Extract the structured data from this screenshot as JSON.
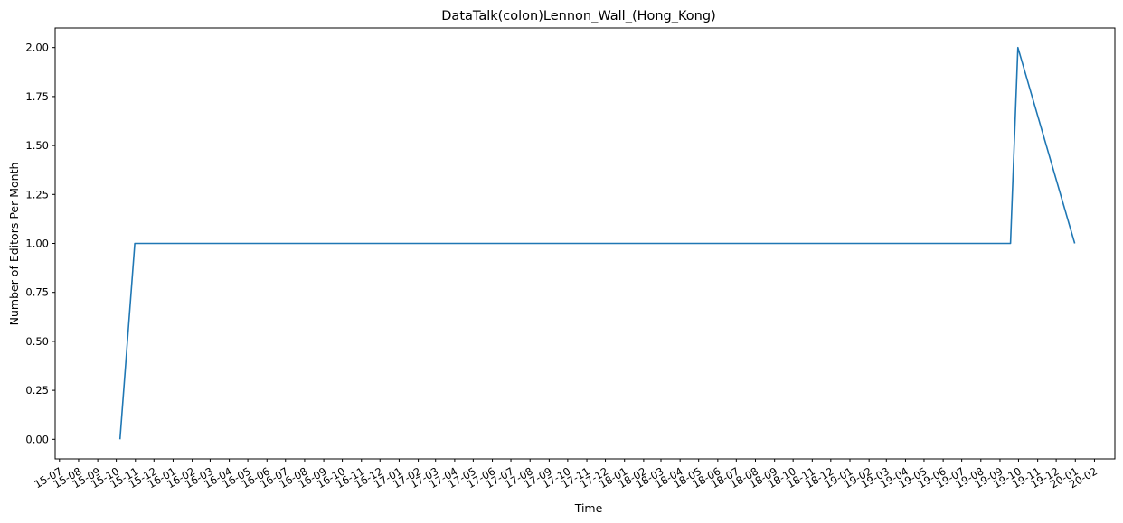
{
  "chart_data": {
    "type": "line",
    "title": "DataTalk(colon)Lennon_Wall_(Hong_Kong)",
    "xlabel": "Time",
    "ylabel": "Number of Editors Per Month",
    "ylim": [
      -0.1,
      2.1
    ],
    "xlim": [
      "2015-06-24",
      "2020-03-05"
    ],
    "grid": false,
    "legend": "none",
    "series": [
      {
        "color": "#1f77b4",
        "x": [
          "2015-10-07",
          "2015-10-31",
          "2019-09-18",
          "2019-09-30",
          "2019-12-31"
        ],
        "y": [
          0,
          1,
          1,
          2,
          1
        ]
      }
    ],
    "yticks": [
      {
        "value": 0.0,
        "label": "0.00"
      },
      {
        "value": 0.25,
        "label": "0.25"
      },
      {
        "value": 0.5,
        "label": "0.50"
      },
      {
        "value": 0.75,
        "label": "0.75"
      },
      {
        "value": 1.0,
        "label": "1.00"
      },
      {
        "value": 1.25,
        "label": "1.25"
      },
      {
        "value": 1.5,
        "label": "1.50"
      },
      {
        "value": 1.75,
        "label": "1.75"
      },
      {
        "value": 2.0,
        "label": "2.00"
      }
    ],
    "xticks": [
      {
        "date": "2015-07-01",
        "label": "15-07"
      },
      {
        "date": "2015-08-01",
        "label": "15-08"
      },
      {
        "date": "2015-09-01",
        "label": "15-09"
      },
      {
        "date": "2015-10-01",
        "label": "15-10"
      },
      {
        "date": "2015-11-01",
        "label": "15-11"
      },
      {
        "date": "2015-12-01",
        "label": "15-12"
      },
      {
        "date": "2016-01-01",
        "label": "16-01"
      },
      {
        "date": "2016-02-01",
        "label": "16-02"
      },
      {
        "date": "2016-03-01",
        "label": "16-03"
      },
      {
        "date": "2016-04-01",
        "label": "16-04"
      },
      {
        "date": "2016-05-01",
        "label": "16-05"
      },
      {
        "date": "2016-06-01",
        "label": "16-06"
      },
      {
        "date": "2016-07-01",
        "label": "16-07"
      },
      {
        "date": "2016-08-01",
        "label": "16-08"
      },
      {
        "date": "2016-09-01",
        "label": "16-09"
      },
      {
        "date": "2016-10-01",
        "label": "16-10"
      },
      {
        "date": "2016-11-01",
        "label": "16-11"
      },
      {
        "date": "2016-12-01",
        "label": "16-12"
      },
      {
        "date": "2017-01-01",
        "label": "17-01"
      },
      {
        "date": "2017-02-01",
        "label": "17-02"
      },
      {
        "date": "2017-03-01",
        "label": "17-03"
      },
      {
        "date": "2017-04-01",
        "label": "17-04"
      },
      {
        "date": "2017-05-01",
        "label": "17-05"
      },
      {
        "date": "2017-06-01",
        "label": "17-06"
      },
      {
        "date": "2017-07-01",
        "label": "17-07"
      },
      {
        "date": "2017-08-01",
        "label": "17-08"
      },
      {
        "date": "2017-09-01",
        "label": "17-09"
      },
      {
        "date": "2017-10-01",
        "label": "17-10"
      },
      {
        "date": "2017-11-01",
        "label": "17-11"
      },
      {
        "date": "2017-12-01",
        "label": "17-12"
      },
      {
        "date": "2018-01-01",
        "label": "18-01"
      },
      {
        "date": "2018-02-01",
        "label": "18-02"
      },
      {
        "date": "2018-03-01",
        "label": "18-03"
      },
      {
        "date": "2018-04-01",
        "label": "18-04"
      },
      {
        "date": "2018-05-01",
        "label": "18-05"
      },
      {
        "date": "2018-06-01",
        "label": "18-06"
      },
      {
        "date": "2018-07-01",
        "label": "18-07"
      },
      {
        "date": "2018-08-01",
        "label": "18-08"
      },
      {
        "date": "2018-09-01",
        "label": "18-09"
      },
      {
        "date": "2018-10-01",
        "label": "18-10"
      },
      {
        "date": "2018-11-01",
        "label": "18-11"
      },
      {
        "date": "2018-12-01",
        "label": "18-12"
      },
      {
        "date": "2019-01-01",
        "label": "19-01"
      },
      {
        "date": "2019-02-01",
        "label": "19-02"
      },
      {
        "date": "2019-03-01",
        "label": "19-03"
      },
      {
        "date": "2019-04-01",
        "label": "19-04"
      },
      {
        "date": "2019-05-01",
        "label": "19-05"
      },
      {
        "date": "2019-06-01",
        "label": "19-06"
      },
      {
        "date": "2019-07-01",
        "label": "19-07"
      },
      {
        "date": "2019-08-01",
        "label": "19-08"
      },
      {
        "date": "2019-09-01",
        "label": "19-09"
      },
      {
        "date": "2019-10-01",
        "label": "19-10"
      },
      {
        "date": "2019-11-01",
        "label": "19-11"
      },
      {
        "date": "2019-12-01",
        "label": "19-12"
      },
      {
        "date": "2020-01-01",
        "label": "20-01"
      },
      {
        "date": "2020-02-01",
        "label": "20-02"
      }
    ]
  }
}
